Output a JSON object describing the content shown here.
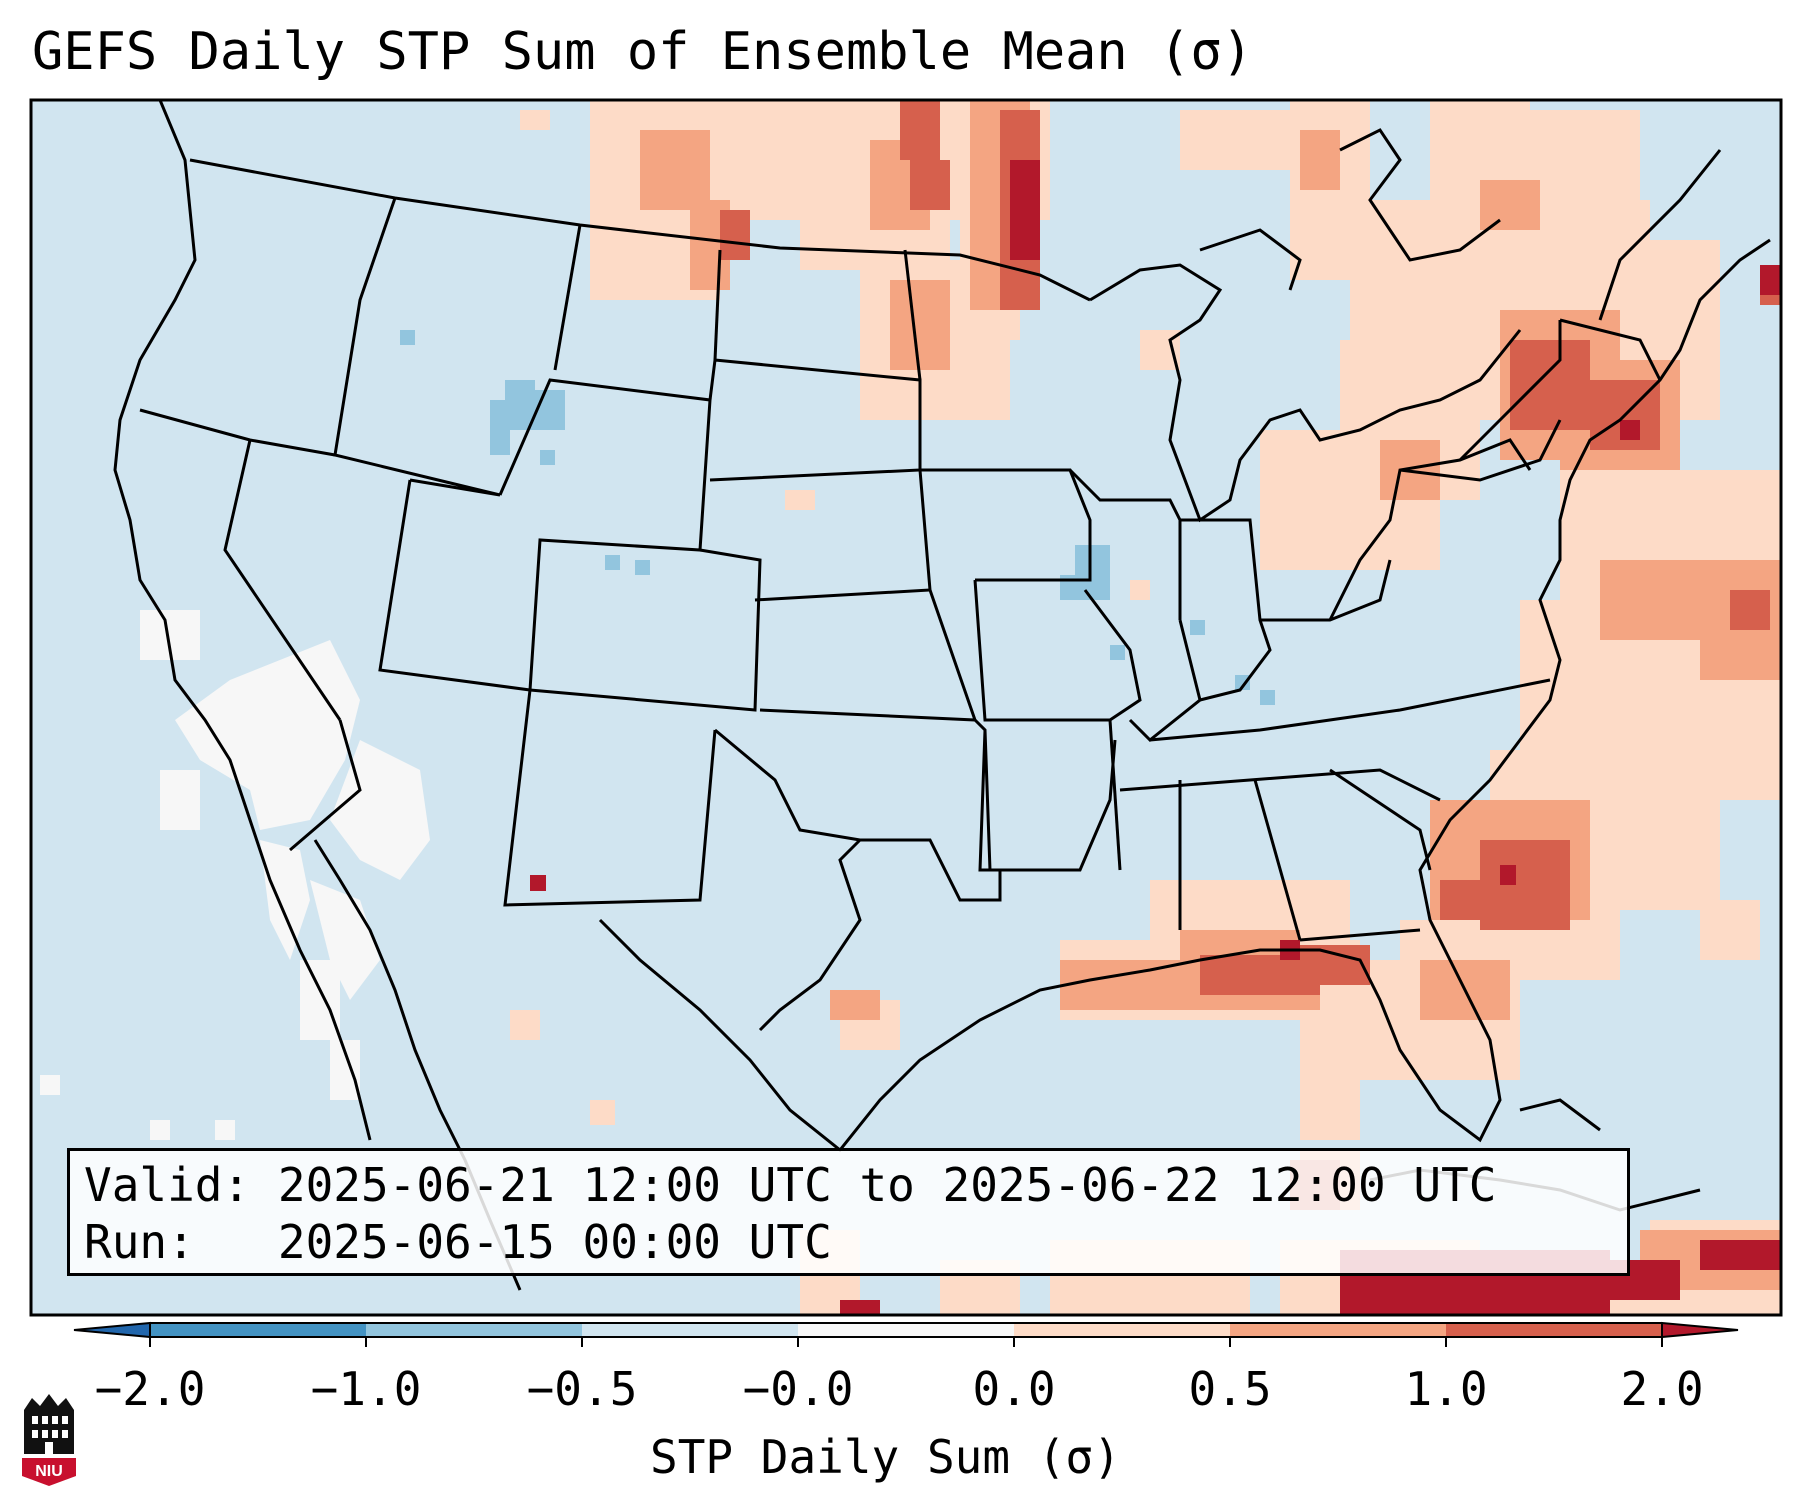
{
  "title": "GEFS Daily STP Sum of Ensemble Mean (σ)",
  "legend": {
    "valid_label": "Valid:",
    "valid_value": "2025-06-21 12:00 UTC to 2025-06-22 12:00 UTC",
    "run_label": "Run:",
    "run_value": "2025-06-15 00:00 UTC"
  },
  "colorbar": {
    "label": "STP Daily Sum (σ)",
    "ticks": [
      "−2.0",
      "−1.0",
      "−0.5",
      "−0.0",
      "0.0",
      "0.5",
      "1.0",
      "2.0"
    ],
    "bins": [
      {
        "color": "#4393c3"
      },
      {
        "color": "#92c5de"
      },
      {
        "color": "#d1e5f0"
      },
      {
        "color": "#f7f7f7"
      },
      {
        "color": "#fddbc7"
      },
      {
        "color": "#f4a582"
      },
      {
        "color": "#d6604d"
      }
    ],
    "under_color": "#2166ac",
    "over_color": "#b2182b"
  },
  "colors": {
    "background_ocean": "#d1e5f0",
    "neutral": "#f7f7f7",
    "light_pos": "#fddbc7",
    "mid_pos": "#f4a582",
    "high_pos": "#d6604d",
    "extreme_pos": "#b2182b",
    "light_neg": "#92c5de"
  },
  "logo": {
    "text": "NIU",
    "icon": "niu-logo-icon"
  }
}
